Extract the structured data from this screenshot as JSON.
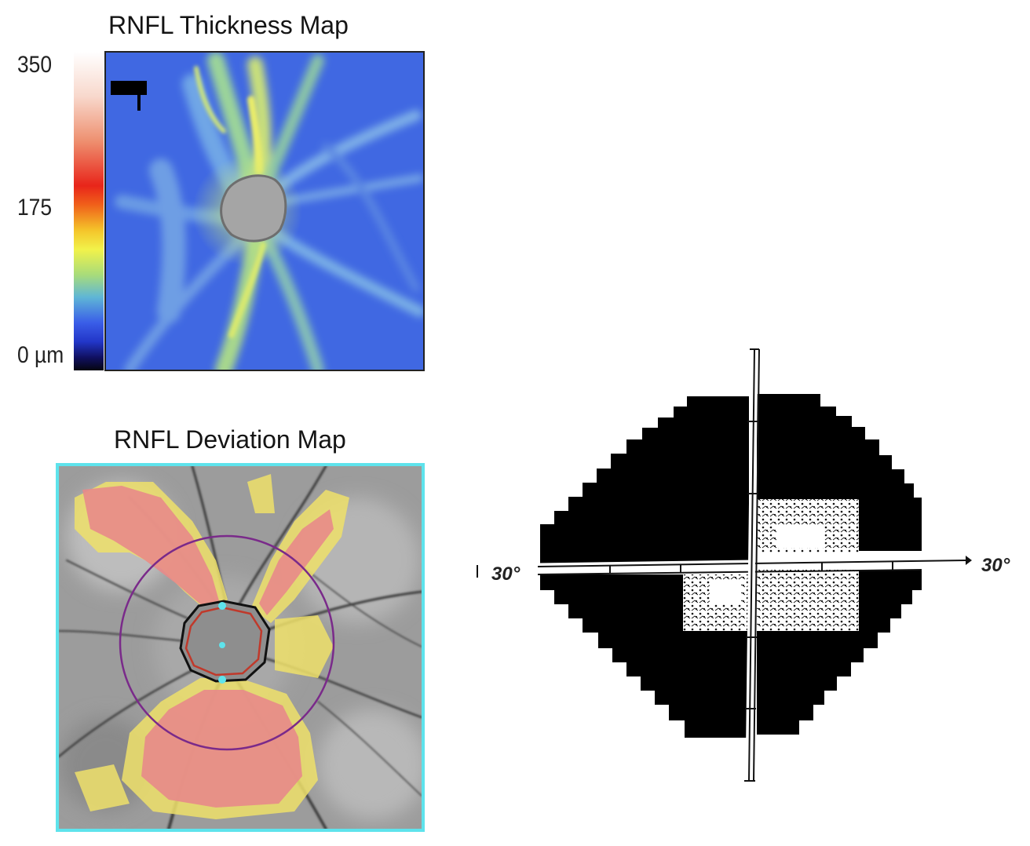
{
  "thickness_map": {
    "title": "RNFL Thickness Map",
    "scale": {
      "max": "350",
      "mid": "175",
      "min": "0 µm"
    }
  },
  "deviation_map": {
    "title": "RNFL Deviation Map"
  },
  "visual_field": {
    "left_label": "30°",
    "right_label": "30°"
  },
  "colors": {
    "map_blue": "#3f62e0",
    "map_green": "#b8e07c",
    "disc_gray": "#a3a3a3",
    "frame_cyan": "#5ee3ec",
    "deviation_red": "#e88a8a",
    "deviation_yellow": "#eee16a",
    "circle_purple": "#7a2a8a"
  }
}
